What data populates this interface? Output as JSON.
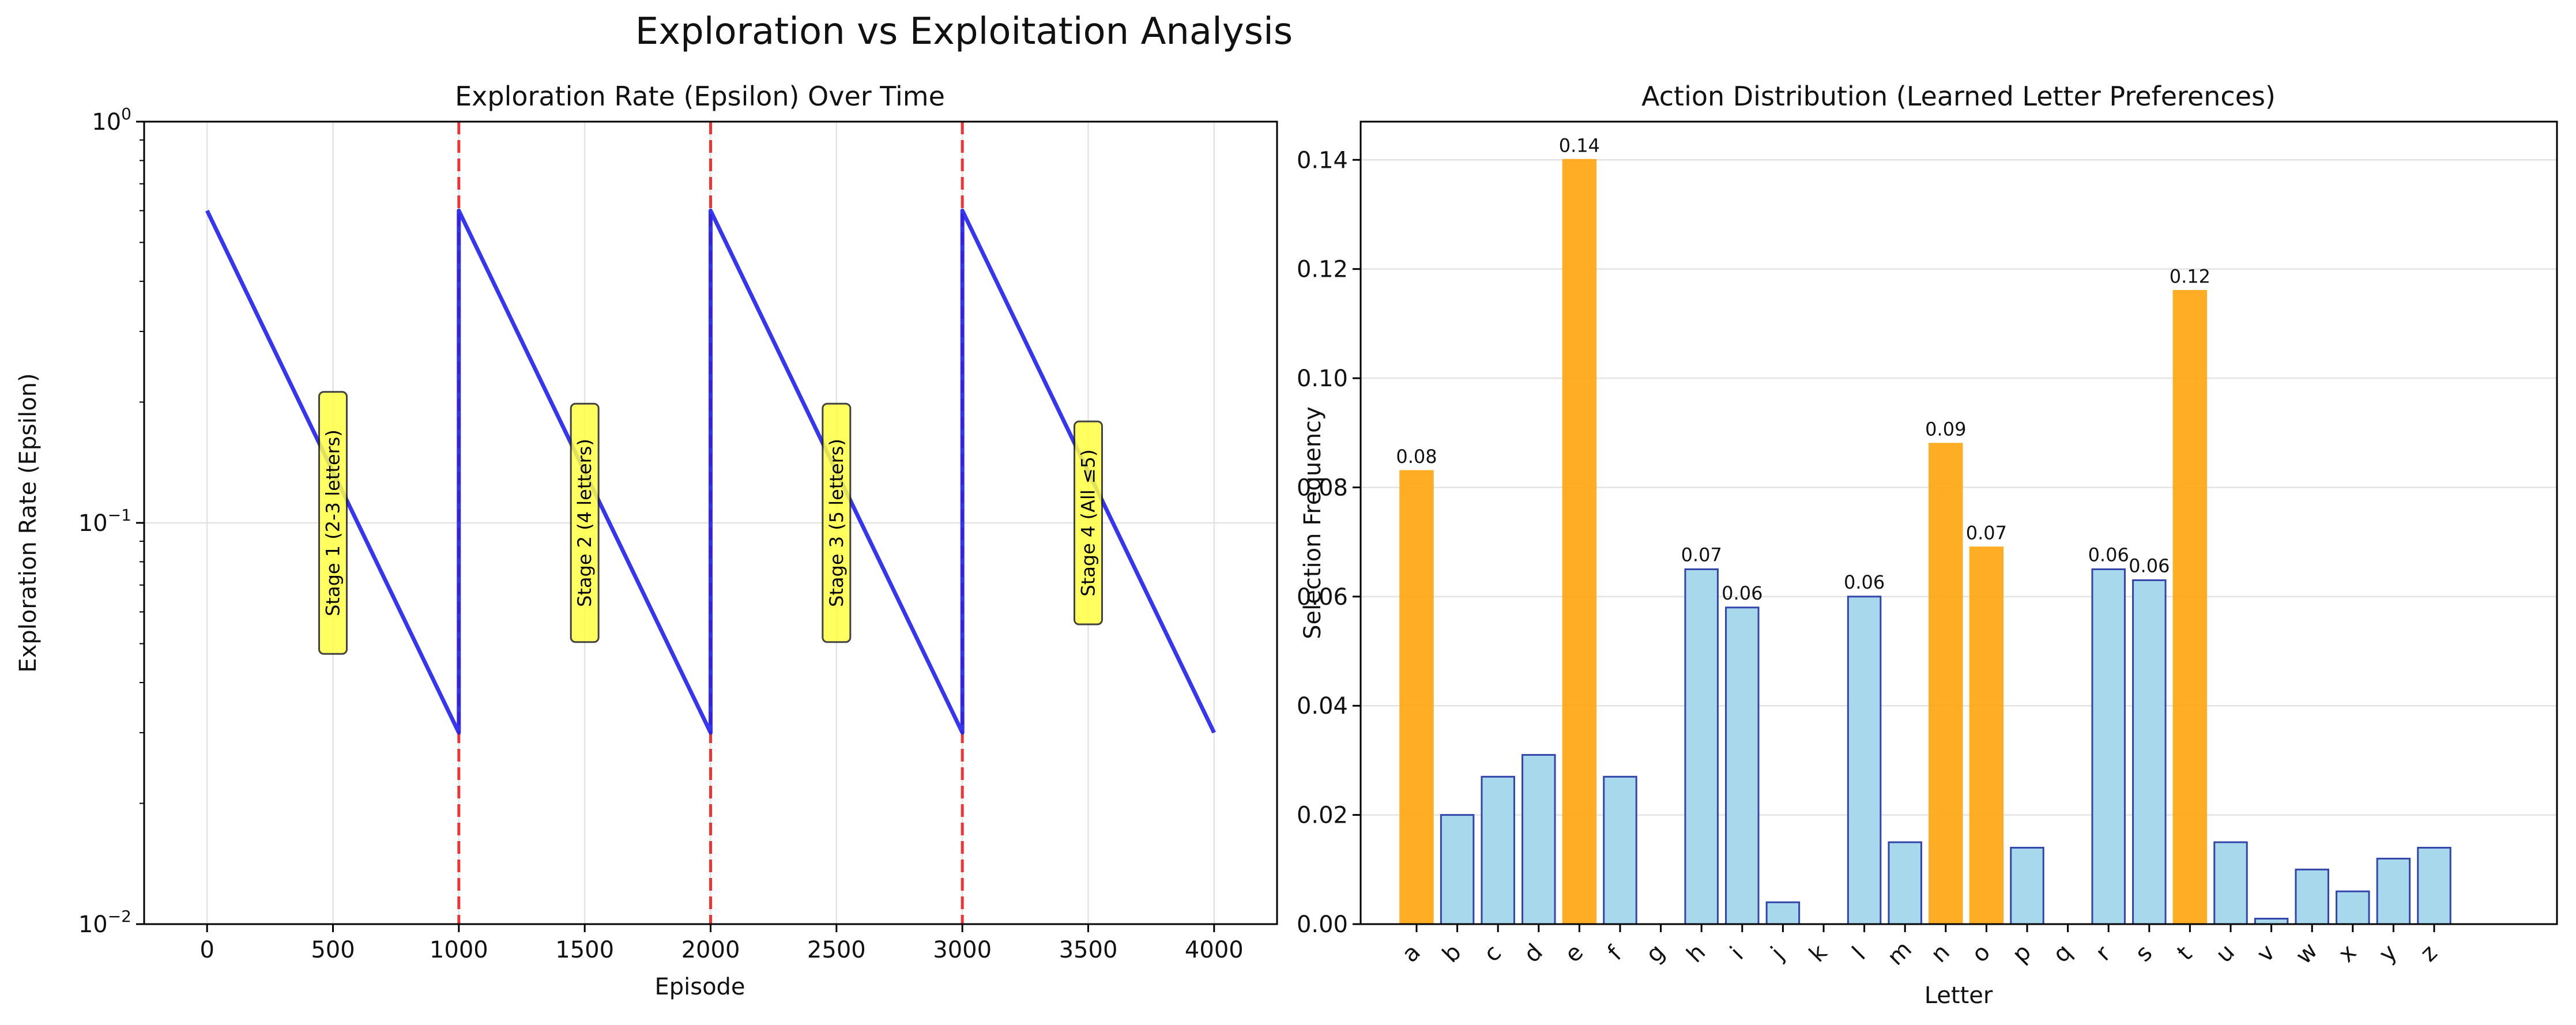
{
  "figure": {
    "title": "Exploration vs Exploitation Analysis"
  },
  "colors": {
    "epsilon_line": "#2020ee",
    "stage_boundary": "#ee3333",
    "stage_label_bg": "#ffff44",
    "bar_default": "#a8d8ec",
    "bar_edge": "#3344aa",
    "bar_highlight": "#ffa91a",
    "grid": "#e3e3e3"
  },
  "chart_data": [
    {
      "type": "line",
      "title": "Exploration Rate (Epsilon) Over Time",
      "xlabel": "Episode",
      "ylabel": "Exploration Rate (Epsilon)",
      "yscale": "log",
      "xlim": [
        -250,
        4250
      ],
      "ylim": [
        0.01,
        1
      ],
      "xticks": [
        0,
        500,
        1000,
        1500,
        2000,
        2500,
        3000,
        3500,
        4000
      ],
      "xtick_labels": [
        "0",
        "500",
        "1000",
        "1500",
        "2000",
        "2500",
        "3000",
        "3500",
        "4000"
      ],
      "yticks": [
        {
          "value": 0.01,
          "base": "10",
          "exp": "−2"
        },
        {
          "value": 0.1,
          "base": "10",
          "exp": "−1"
        },
        {
          "value": 1,
          "base": "10",
          "exp": "0"
        }
      ],
      "grid": true,
      "series": [
        {
          "x": [
            0,
            1000,
            1000,
            2000,
            2000,
            3000,
            3000,
            4000
          ],
          "y": [
            0.6,
            0.03,
            0.6,
            0.03,
            0.6,
            0.03,
            0.6,
            0.03
          ]
        }
      ],
      "vlines": [
        1000,
        2000,
        3000
      ],
      "annotations": [
        {
          "x": 500,
          "y": 0.1,
          "text": "Stage 1 (2-3 letters)"
        },
        {
          "x": 1500,
          "y": 0.1,
          "text": "Stage 2 (4 letters)"
        },
        {
          "x": 2500,
          "y": 0.1,
          "text": "Stage 3 (5 letters)"
        },
        {
          "x": 3500,
          "y": 0.1,
          "text": "Stage 4 (All ≤5)"
        }
      ]
    },
    {
      "type": "bar",
      "title": "Action Distribution (Learned Letter Preferences)",
      "xlabel": "Letter",
      "ylabel": "Selection Frequency",
      "ylim": [
        0,
        0.147
      ],
      "yticks": [
        0.0,
        0.02,
        0.04,
        0.06,
        0.08,
        0.1,
        0.12,
        0.14
      ],
      "ytick_labels": [
        "0.00",
        "0.02",
        "0.04",
        "0.06",
        "0.08",
        "0.10",
        "0.12",
        "0.14"
      ],
      "grid": true,
      "categories": [
        "a",
        "b",
        "c",
        "d",
        "e",
        "f",
        "g",
        "h",
        "i",
        "j",
        "k",
        "l",
        "m",
        "n",
        "o",
        "p",
        "q",
        "r",
        "s",
        "t",
        "u",
        "v",
        "w",
        "x",
        "y",
        "z"
      ],
      "values": [
        0.083,
        0.02,
        0.027,
        0.031,
        0.14,
        0.027,
        0.0,
        0.065,
        0.058,
        0.004,
        0.0,
        0.06,
        0.015,
        0.088,
        0.069,
        0.014,
        0.0,
        0.065,
        0.063,
        0.116,
        0.015,
        0.001,
        0.01,
        0.006,
        0.012,
        0.014
      ],
      "highlighted": [
        "a",
        "e",
        "n",
        "o",
        "t"
      ],
      "data_labels": {
        "a": "0.08",
        "e": "0.14",
        "h": "0.07",
        "i": "0.06",
        "l": "0.06",
        "n": "0.09",
        "o": "0.07",
        "r": "0.06",
        "s": "0.06",
        "t": "0.12"
      }
    }
  ]
}
